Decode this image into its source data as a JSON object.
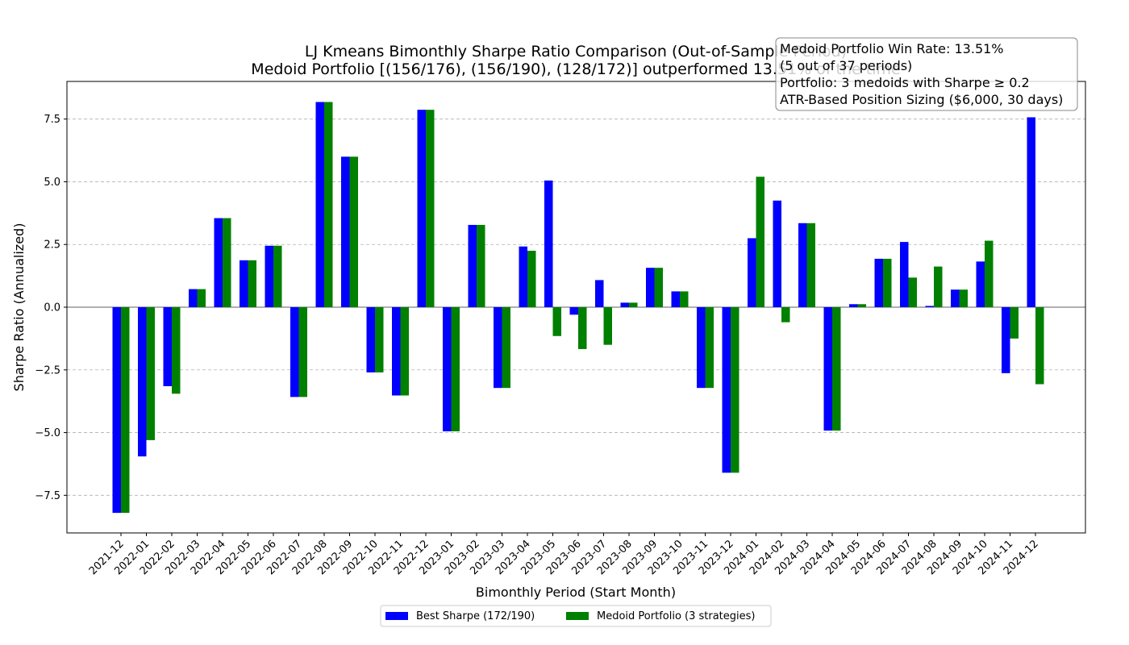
{
  "chart_data": {
    "type": "bar",
    "title_line1": "LJ Kmeans Bimonthly Sharpe Ratio Comparison (Out-of-Sample Period)",
    "title_line2": "Medoid Portfolio [(156/176), (156/190), (128/172)] outperformed 13.51% of the time",
    "xlabel": "Bimonthly Period (Start Month)",
    "ylabel": "Sharpe Ratio (Annualized)",
    "ylim": [
      -9.0,
      9.0
    ],
    "yticks": [
      -7.5,
      -5.0,
      -2.5,
      0.0,
      2.5,
      5.0,
      7.5
    ],
    "ytick_labels": [
      "−7.5",
      "−5.0",
      "−2.5",
      "0.0",
      "2.5",
      "5.0",
      "7.5"
    ],
    "grid": "y-dashed",
    "legend_placement": "bottom-center",
    "categories": [
      "2021-12",
      "2022-01",
      "2022-02",
      "2022-03",
      "2022-04",
      "2022-05",
      "2022-06",
      "2022-07",
      "2022-08",
      "2022-09",
      "2022-10",
      "2022-11",
      "2022-12",
      "2023-01",
      "2023-02",
      "2023-03",
      "2023-04",
      "2023-05",
      "2023-06",
      "2023-07",
      "2023-08",
      "2023-09",
      "2023-10",
      "2023-11",
      "2023-12",
      "2024-01",
      "2024-02",
      "2024-03",
      "2024-04",
      "2024-05",
      "2024-06",
      "2024-07",
      "2024-08",
      "2024-09",
      "2024-10",
      "2024-11",
      "2024-12"
    ],
    "series": [
      {
        "name": "Best Sharpe (172/190)",
        "color": "#0000ff",
        "values": [
          -8.2,
          -5.95,
          -3.15,
          0.72,
          3.55,
          1.87,
          2.45,
          -3.58,
          8.18,
          6.0,
          -2.6,
          -3.52,
          7.87,
          -4.95,
          3.28,
          -3.22,
          2.42,
          5.05,
          -0.3,
          1.08,
          0.18,
          1.57,
          0.63,
          -3.22,
          -6.6,
          2.75,
          4.25,
          3.35,
          -4.92,
          0.12,
          1.93,
          2.6,
          0.05,
          0.7,
          1.82,
          -2.63,
          7.57
        ]
      },
      {
        "name": "Medoid Portfolio (3 strategies)",
        "color": "#008000",
        "values": [
          -8.2,
          -5.3,
          -3.45,
          0.72,
          3.55,
          1.87,
          2.45,
          -3.58,
          8.18,
          6.0,
          -2.6,
          -3.52,
          7.87,
          -4.95,
          3.28,
          -3.22,
          2.25,
          -1.15,
          -1.67,
          -1.5,
          0.18,
          1.57,
          0.63,
          -3.22,
          -6.6,
          5.2,
          -0.6,
          3.35,
          -4.92,
          0.12,
          1.93,
          1.18,
          1.62,
          0.7,
          2.65,
          -1.25,
          -3.07
        ]
      }
    ],
    "annotation": [
      "Medoid Portfolio Win Rate: 13.51%",
      "(5 out of 37 periods)",
      "Portfolio: 3 medoids with Sharpe ≥ 0.2",
      "ATR-Based Position Sizing ($6,000, 30 days)"
    ]
  }
}
